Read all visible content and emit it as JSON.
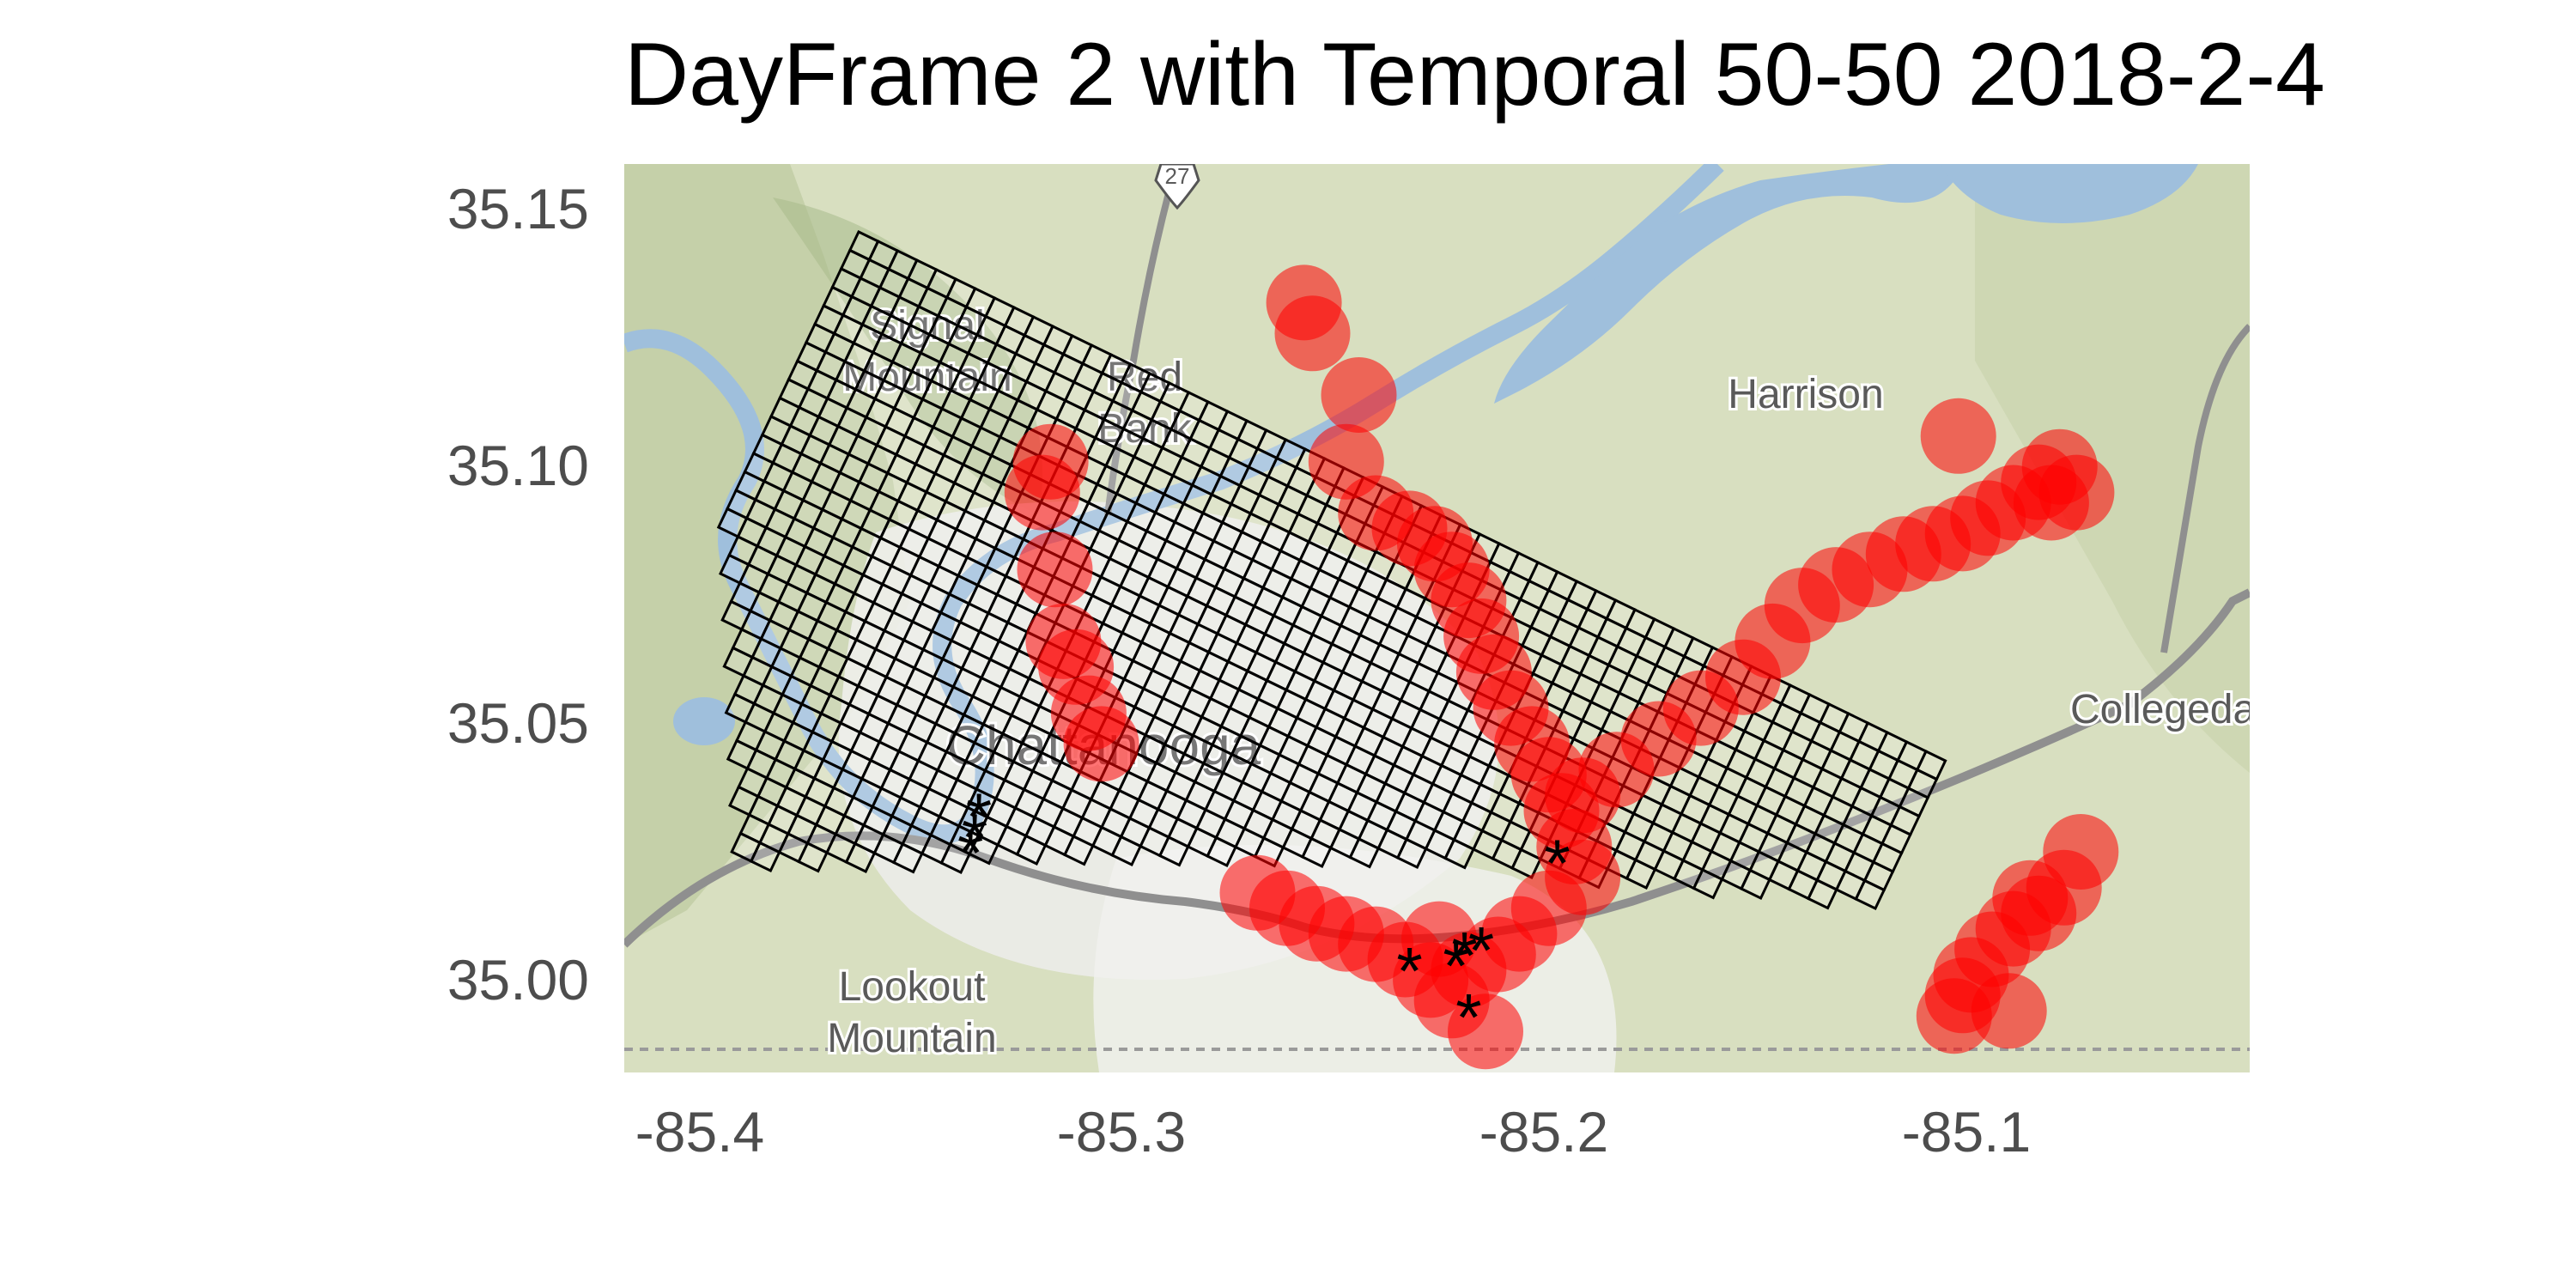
{
  "title": "DayFrame 2 with Temporal 50-50 2018-2-4",
  "x_ticks": [
    "-85.4",
    "-85.3",
    "-85.2",
    "-85.1"
  ],
  "y_ticks": [
    "35.15",
    "35.10",
    "35.05",
    "35.00"
  ],
  "places": {
    "signal_1": "Signal",
    "signal_2": "Mountain",
    "red_1": "Red",
    "red_2": "Bank",
    "harrison": "Harrison",
    "chattanooga": "Chattanooga",
    "lookout_1": "Lookout",
    "lookout_2": "Mountain",
    "collegedale": "Collegeda",
    "highway": "27"
  },
  "colors": {
    "hotspot": "#ff0000",
    "grid": "#000000",
    "water": "#9fbfdc",
    "land": "#d8dfc0"
  },
  "chart_data": {
    "type": "scatter",
    "xlim": [
      -85.405,
      -85.02
    ],
    "ylim": [
      34.982,
      35.159
    ],
    "series": [
      {
        "kind": "hotspots",
        "points": [
          [
            -85.244,
            35.132
          ],
          [
            -85.242,
            35.126
          ],
          [
            -85.231,
            35.114
          ],
          [
            -85.234,
            35.101
          ],
          [
            -85.227,
            35.091
          ],
          [
            -85.219,
            35.088
          ],
          [
            -85.213,
            35.085
          ],
          [
            -85.209,
            35.08
          ],
          [
            -85.205,
            35.074
          ],
          [
            -85.202,
            35.067
          ],
          [
            -85.199,
            35.06
          ],
          [
            -85.195,
            35.053
          ],
          [
            -85.19,
            35.046
          ],
          [
            -85.186,
            35.04
          ],
          [
            -85.183,
            35.033
          ],
          [
            -85.18,
            35.026
          ],
          [
            -85.178,
            35.02
          ],
          [
            -85.186,
            35.014
          ],
          [
            -85.193,
            35.009
          ],
          [
            -85.198,
            35.005
          ],
          [
            -85.178,
            35.036
          ],
          [
            -85.17,
            35.041
          ],
          [
            -85.16,
            35.047
          ],
          [
            -85.15,
            35.053
          ],
          [
            -85.14,
            35.059
          ],
          [
            -85.133,
            35.066
          ],
          [
            -85.126,
            35.073
          ],
          [
            -85.118,
            35.077
          ],
          [
            -85.11,
            35.08
          ],
          [
            -85.102,
            35.083
          ],
          [
            -85.095,
            35.085
          ],
          [
            -85.088,
            35.087
          ],
          [
            -85.082,
            35.09
          ],
          [
            -85.076,
            35.093
          ],
          [
            -85.07,
            35.097
          ],
          [
            -85.065,
            35.1
          ],
          [
            -85.061,
            35.095
          ],
          [
            -85.067,
            35.093
          ],
          [
            -85.089,
            35.106
          ],
          [
            -85.304,
            35.101
          ],
          [
            -85.306,
            35.095
          ],
          [
            -85.303,
            35.08
          ],
          [
            -85.301,
            35.066
          ],
          [
            -85.298,
            35.061
          ],
          [
            -85.295,
            35.052
          ],
          [
            -85.292,
            35.046
          ],
          [
            -85.255,
            35.017
          ],
          [
            -85.248,
            35.014
          ],
          [
            -85.241,
            35.011
          ],
          [
            -85.234,
            35.009
          ],
          [
            -85.227,
            35.007
          ],
          [
            -85.22,
            35.004
          ],
          [
            -85.214,
            35.0
          ],
          [
            -85.209,
            34.996
          ],
          [
            -85.201,
            34.99
          ],
          [
            -85.212,
            35.008
          ],
          [
            -85.205,
            35.002
          ],
          [
            -85.06,
            35.025
          ],
          [
            -85.064,
            35.018
          ],
          [
            -85.07,
            35.013
          ],
          [
            -85.076,
            35.01
          ],
          [
            -85.081,
            35.006
          ],
          [
            -85.086,
            35.001
          ],
          [
            -85.088,
            34.997
          ],
          [
            -85.09,
            34.993
          ],
          [
            -85.077,
            34.994
          ],
          [
            -85.072,
            35.016
          ]
        ]
      },
      {
        "kind": "incidents",
        "marker": "*",
        "points": [
          [
            -85.322,
            35.029
          ],
          [
            -85.321,
            35.033
          ],
          [
            -85.323,
            35.026
          ],
          [
            -85.219,
            35.003
          ],
          [
            -85.208,
            35.004
          ],
          [
            -85.206,
            35.006
          ],
          [
            -85.202,
            35.007
          ],
          [
            -85.205,
            34.994
          ],
          [
            -85.184,
            35.024
          ]
        ]
      }
    ],
    "grid_overlay": {
      "rows": 30,
      "cols": 56
    }
  }
}
